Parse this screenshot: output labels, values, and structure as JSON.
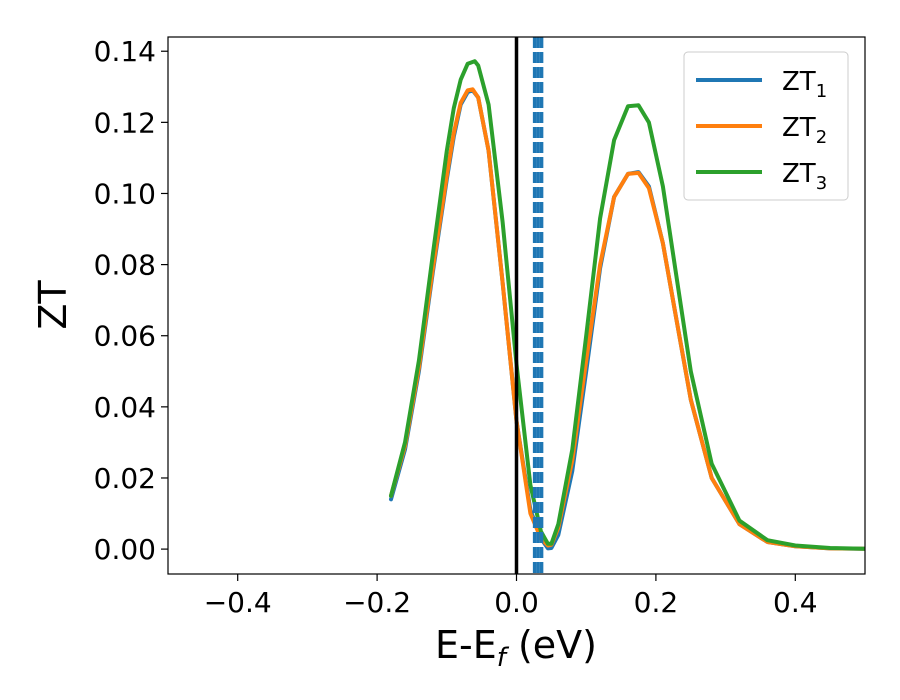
{
  "chart_data": {
    "type": "line",
    "xlabel": "E-E",
    "xlabel_sub": "f",
    "xlabel_unit": " (eV)",
    "ylabel": "ZT",
    "xlim": [
      -0.5,
      0.5
    ],
    "ylim": [
      -0.007,
      0.144
    ],
    "xticks": [
      -0.4,
      -0.2,
      0.0,
      0.2,
      0.4
    ],
    "xtick_labels": [
      "−0.4",
      "−0.2",
      "0.0",
      "0.2",
      "0.4"
    ],
    "yticks": [
      0.0,
      0.02,
      0.04,
      0.06,
      0.08,
      0.1,
      0.12,
      0.14
    ],
    "ytick_labels": [
      "0.00",
      "0.02",
      "0.04",
      "0.06",
      "0.08",
      "0.10",
      "0.12",
      "0.14"
    ],
    "grid": false,
    "legend_position": "top-right",
    "vertical_lines": [
      {
        "x": 0.0,
        "style": "solid",
        "color": "#000000"
      },
      {
        "x": 0.026,
        "style": "dashed",
        "color": "#1f77b4"
      },
      {
        "x": 0.031,
        "style": "dashed",
        "color": "#1f77b4"
      },
      {
        "x": 0.036,
        "style": "dashed",
        "color": "#1f77b4"
      }
    ],
    "series": [
      {
        "name": "ZT",
        "name_sub": "1",
        "color": "#1f77b4",
        "x": [
          -0.18,
          -0.16,
          -0.14,
          -0.12,
          -0.1,
          -0.09,
          -0.08,
          -0.07,
          -0.063,
          -0.055,
          -0.04,
          -0.02,
          0.0,
          0.02,
          0.035,
          0.045,
          0.05,
          0.06,
          0.08,
          0.1,
          0.12,
          0.14,
          0.16,
          0.175,
          0.19,
          0.21,
          0.23,
          0.25,
          0.28,
          0.32,
          0.36,
          0.4,
          0.45,
          0.5
        ],
        "y": [
          0.014,
          0.028,
          0.05,
          0.078,
          0.104,
          0.116,
          0.125,
          0.1285,
          0.129,
          0.127,
          0.112,
          0.075,
          0.036,
          0.011,
          0.003,
          0.0002,
          0.0003,
          0.004,
          0.022,
          0.05,
          0.079,
          0.099,
          0.1055,
          0.106,
          0.102,
          0.086,
          0.064,
          0.042,
          0.02,
          0.007,
          0.002,
          0.0008,
          0.0002,
          0.0001
        ]
      },
      {
        "name": "ZT",
        "name_sub": "2",
        "color": "#ff7f0e",
        "x": [
          -0.18,
          -0.16,
          -0.14,
          -0.12,
          -0.1,
          -0.09,
          -0.08,
          -0.07,
          -0.063,
          -0.055,
          -0.04,
          -0.02,
          0.0,
          0.02,
          0.035,
          0.045,
          0.05,
          0.06,
          0.08,
          0.1,
          0.12,
          0.14,
          0.16,
          0.175,
          0.19,
          0.21,
          0.23,
          0.25,
          0.28,
          0.32,
          0.36,
          0.4,
          0.45,
          0.5
        ],
        "y": [
          0.015,
          0.029,
          0.051,
          0.079,
          0.105,
          0.117,
          0.1255,
          0.129,
          0.1293,
          0.127,
          0.112,
          0.075,
          0.036,
          0.01,
          0.003,
          0.001,
          0.0012,
          0.006,
          0.025,
          0.053,
          0.08,
          0.099,
          0.1055,
          0.1058,
          0.1015,
          0.086,
          0.064,
          0.042,
          0.02,
          0.007,
          0.002,
          0.0008,
          0.0002,
          0.0001
        ]
      },
      {
        "name": "ZT",
        "name_sub": "3",
        "color": "#2ca02c",
        "x": [
          -0.18,
          -0.16,
          -0.14,
          -0.12,
          -0.1,
          -0.09,
          -0.08,
          -0.07,
          -0.06,
          -0.055,
          -0.04,
          -0.02,
          0.0,
          0.02,
          0.035,
          0.045,
          0.05,
          0.06,
          0.08,
          0.1,
          0.12,
          0.14,
          0.16,
          0.175,
          0.19,
          0.21,
          0.23,
          0.25,
          0.28,
          0.32,
          0.36,
          0.4,
          0.45,
          0.5
        ],
        "y": [
          0.015,
          0.03,
          0.053,
          0.083,
          0.112,
          0.124,
          0.132,
          0.1365,
          0.1372,
          0.136,
          0.125,
          0.092,
          0.052,
          0.018,
          0.005,
          0.0015,
          0.0015,
          0.007,
          0.028,
          0.06,
          0.093,
          0.115,
          0.1245,
          0.1248,
          0.12,
          0.102,
          0.076,
          0.05,
          0.024,
          0.008,
          0.0025,
          0.001,
          0.0003,
          0.0001
        ]
      }
    ]
  }
}
